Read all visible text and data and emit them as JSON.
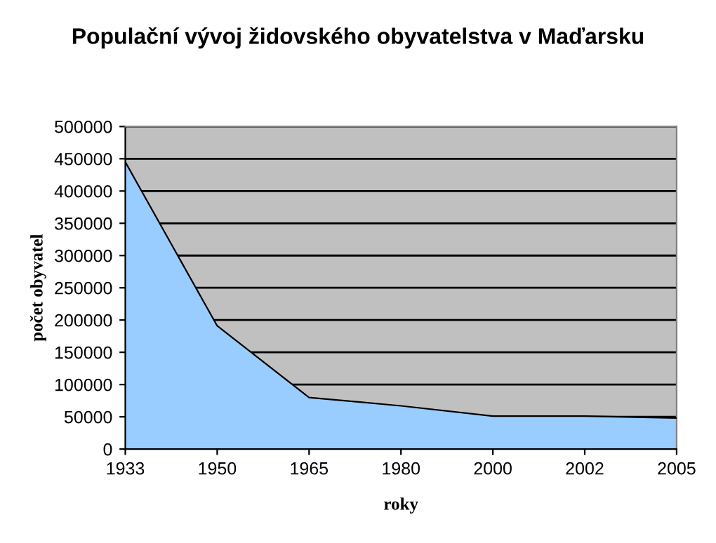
{
  "chart_data": {
    "type": "area",
    "title": "Populační vývoj židovského obyvatelstva v Maďarsku",
    "xlabel": "roky",
    "ylabel": "počet obyvatel",
    "categories": [
      "1933",
      "1950",
      "1965",
      "1980",
      "2000",
      "2002",
      "2005"
    ],
    "series": [
      {
        "color": "#99ccff",
        "values": [
          445000,
          191000,
          80000,
          67000,
          51000,
          51000,
          48000
        ]
      }
    ],
    "ylim": [
      0,
      500000
    ],
    "yticks": [
      0,
      50000,
      100000,
      150000,
      200000,
      250000,
      300000,
      350000,
      400000,
      450000,
      500000
    ],
    "grid": "y",
    "legend": false
  }
}
